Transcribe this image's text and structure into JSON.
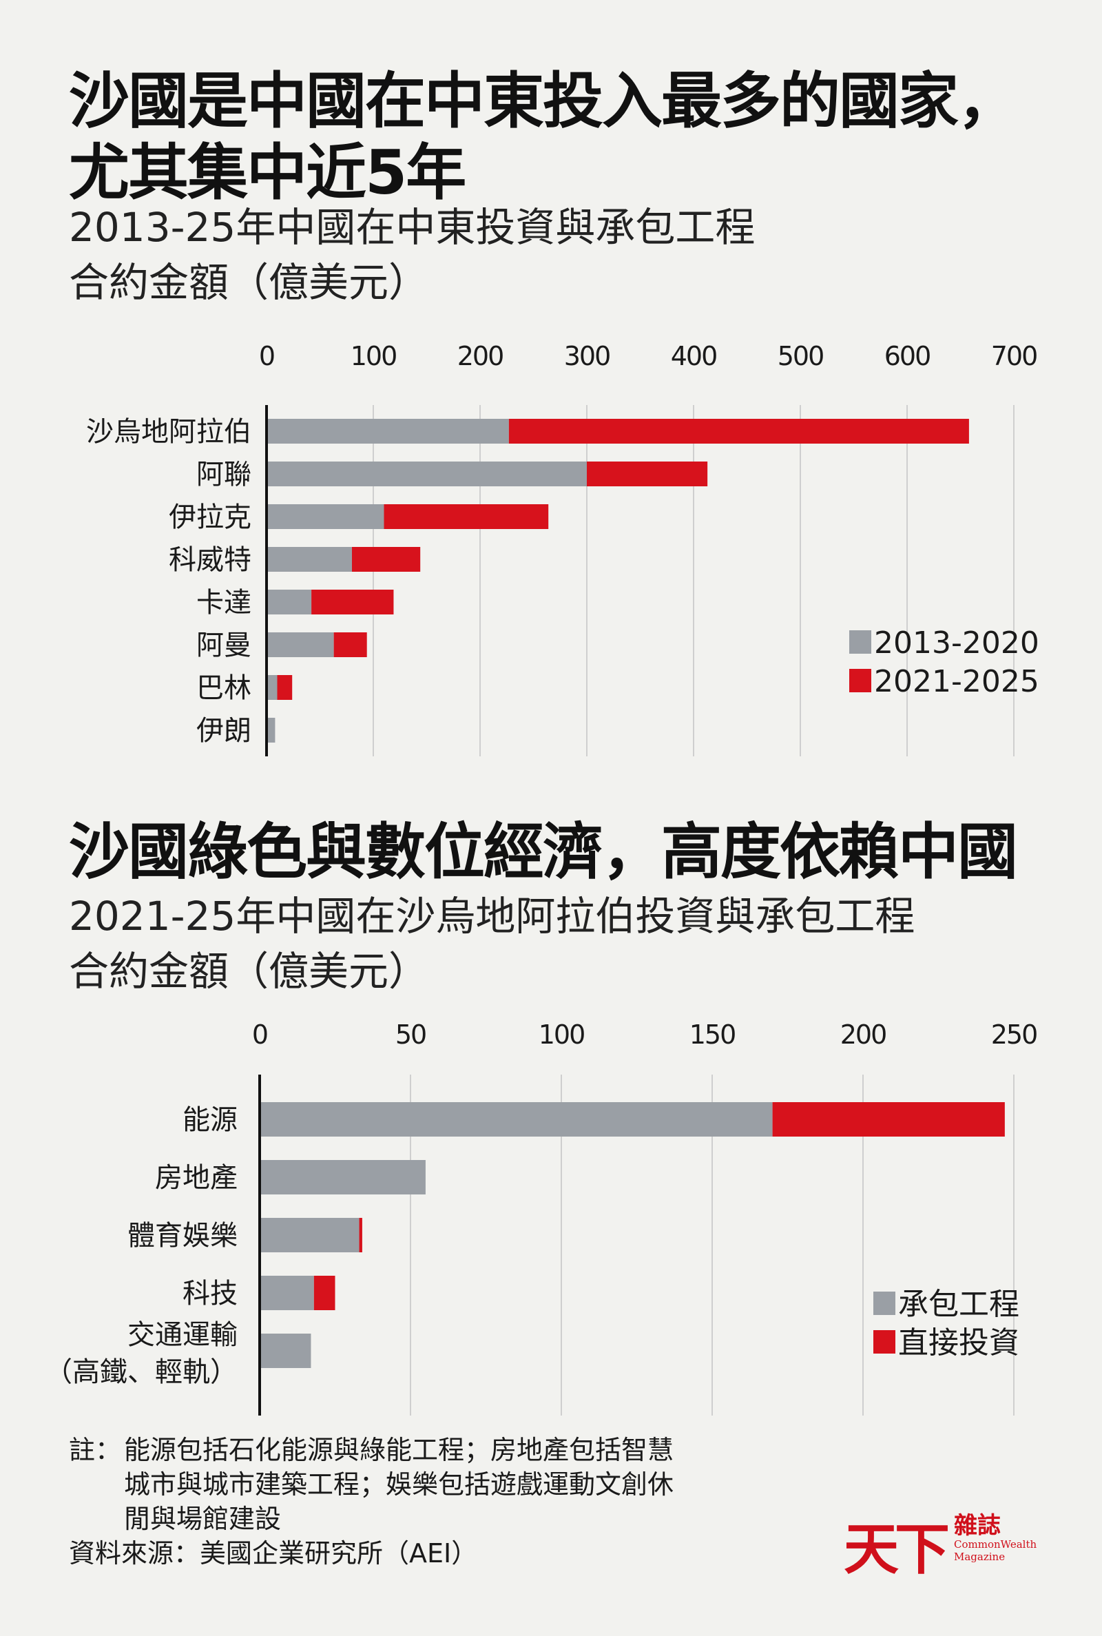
{
  "section1": {
    "title_line1": "沙國是中國在中東投入最多的國家，",
    "title_line2": "尤其集中近5年",
    "subtitle_line1": "2013-25年中國在中東投資與承包工程",
    "subtitle_line2": "合約金額（億美元）"
  },
  "section2": {
    "title": "沙國綠色與數位經濟，高度依賴中國",
    "subtitle_line1": "2021-25年中國在沙烏地阿拉伯投資與承包工程",
    "subtitle_line2": "合約金額（億美元）"
  },
  "colors": {
    "gray": "#9a9fa5",
    "red": "#d7121c",
    "grid": "#cfcfcf",
    "axis": "#111111"
  },
  "chart_data": [
    {
      "type": "bar",
      "orientation": "horizontal",
      "stacked": true,
      "categories": [
        "沙烏地阿拉伯",
        "阿聯",
        "伊拉克",
        "科威特",
        "卡達",
        "阿曼",
        "巴林",
        "伊朗"
      ],
      "series": [
        {
          "name": "2013-2020",
          "color": "#9a9fa5",
          "values": [
            227,
            300,
            110,
            80,
            42,
            63,
            10,
            8
          ]
        },
        {
          "name": "2021-2025",
          "color": "#d7121c",
          "values": [
            431,
            113,
            154,
            64,
            77,
            31,
            14,
            0
          ]
        }
      ],
      "xlim": [
        0,
        700
      ],
      "ticks": [
        "0",
        "100",
        "200",
        "300",
        "400",
        "500",
        "600",
        "700"
      ],
      "grid": true,
      "legend_position": "right"
    },
    {
      "type": "bar",
      "orientation": "horizontal",
      "stacked": true,
      "categories": [
        "能源",
        "房地產",
        "體育娛樂",
        "科技",
        "交通運輸\n（高鐵、輕軌）"
      ],
      "series": [
        {
          "name": "承包工程",
          "color": "#9a9fa5",
          "values": [
            170,
            55,
            33,
            18,
            17
          ]
        },
        {
          "name": "直接投資",
          "color": "#d7121c",
          "values": [
            77,
            0,
            1,
            7,
            0
          ]
        }
      ],
      "xlim": [
        0,
        250
      ],
      "ticks": [
        "0",
        "50",
        "100",
        "150",
        "200",
        "250"
      ],
      "grid": true,
      "legend_position": "right"
    }
  ],
  "note": {
    "prefix": "註：",
    "line1": "能源包括石化能源與綠能工程；房地產包括智慧",
    "line2": "城市與城市建築工程；娛樂包括遊戲運動文創休",
    "line3": "閒與場館建設",
    "source": "資料來源：美國企業研究所（AEI）"
  },
  "logo": {
    "mark": "天下",
    "name_zh": "雜誌",
    "name_en_line1": "CommonWealth",
    "name_en_line2": "Magazine"
  }
}
